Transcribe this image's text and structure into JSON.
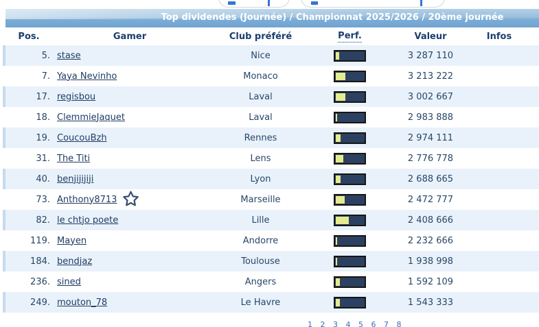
{
  "header": {
    "title": "Top dividendes (Journée) / Championnat 2025/2026 / 20ème journée"
  },
  "columns": {
    "pos": "Pos.",
    "gamer": "Gamer",
    "club": "Club préféré",
    "perf": "Perf.",
    "valeur": "Valeur",
    "infos": "Infos"
  },
  "rows": [
    {
      "pos": "5.",
      "gamer": "stase",
      "club": "Nice",
      "perf_pct": 11,
      "valeur": "3 287 110",
      "starred": false
    },
    {
      "pos": "7.",
      "gamer": "Yaya Nevinho",
      "club": "Monaco",
      "perf_pct": 33,
      "valeur": "3 213 222",
      "starred": false
    },
    {
      "pos": "17.",
      "gamer": "regisbou",
      "club": "Laval",
      "perf_pct": 33,
      "valeur": "3 002 667",
      "starred": false
    },
    {
      "pos": "18.",
      "gamer": "ClemmieJaquet",
      "club": "Laval",
      "perf_pct": 5,
      "valeur": "2 983 888",
      "starred": false
    },
    {
      "pos": "19.",
      "gamer": "CoucouBzh",
      "club": "Rennes",
      "perf_pct": 17,
      "valeur": "2 974 111",
      "starred": false
    },
    {
      "pos": "31.",
      "gamer": "The Titi",
      "club": "Lens",
      "perf_pct": 26,
      "valeur": "2 776 778",
      "starred": false
    },
    {
      "pos": "40.",
      "gamer": "benjijijiji",
      "club": "Lyon",
      "perf_pct": 16,
      "valeur": "2 688 665",
      "starred": false
    },
    {
      "pos": "73.",
      "gamer": "Anthony8713",
      "club": "Marseille",
      "perf_pct": 31,
      "valeur": "2 472 777",
      "starred": true
    },
    {
      "pos": "82.",
      "gamer": "le chtjo poete",
      "club": "Lille",
      "perf_pct": 45,
      "valeur": "2 408 666",
      "starred": false
    },
    {
      "pos": "119.",
      "gamer": "Mayen",
      "club": "Andorre",
      "perf_pct": 4,
      "valeur": "2 232 666",
      "starred": false
    },
    {
      "pos": "184.",
      "gamer": "bendjaz",
      "club": "Toulouse",
      "perf_pct": 4,
      "valeur": "1 938 998",
      "starred": false
    },
    {
      "pos": "236.",
      "gamer": "sined",
      "club": "Angers",
      "perf_pct": 15,
      "valeur": "1 592 109",
      "starred": false
    },
    {
      "pos": "249.",
      "gamer": "mouton_78",
      "club": "Le Havre",
      "perf_pct": 15,
      "valeur": "1 543 333",
      "starred": false
    }
  ],
  "pagination": "1 2 3 4 5 6 7 8",
  "colors": {
    "titlebar_top": "#b2cfe7",
    "titlebar_bottom": "#6fa3d0",
    "row_alt_bg": "#e9f2fb",
    "row_alt_strip": "#c7daed",
    "bar_navy": "#2c4162",
    "bar_yellow": "#e5eb8f",
    "text_navy": "#1c3e6e",
    "link_navy": "#1f3c63"
  }
}
